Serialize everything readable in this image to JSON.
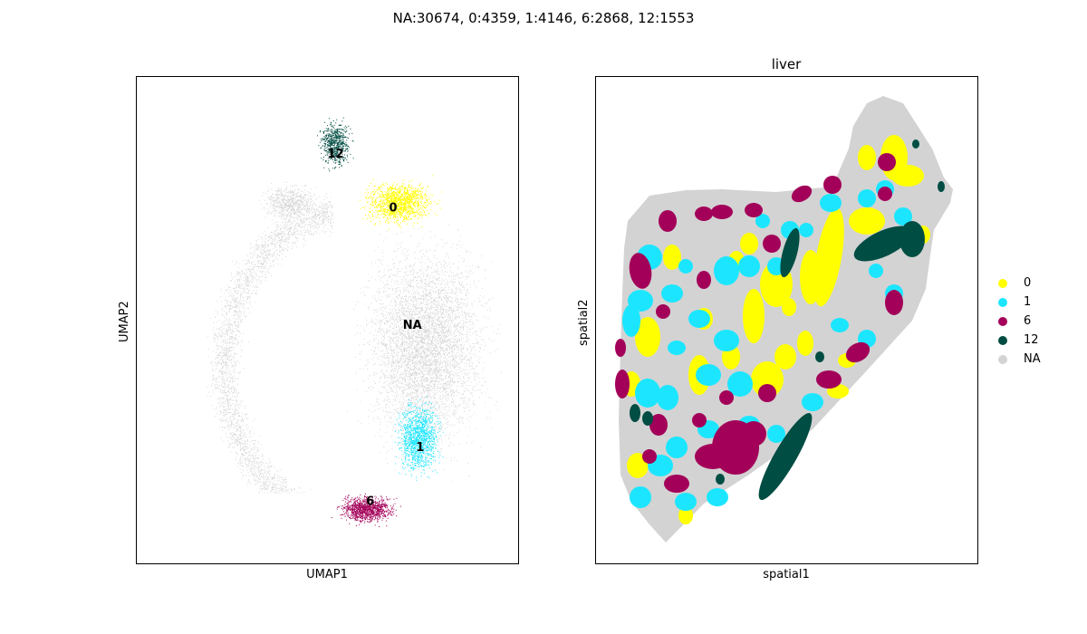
{
  "suptitle": "NA:30674, 0:4359, 1:4146, 6:2868, 12:1553",
  "colors": {
    "0": "#ffff00",
    "1": "#1ce6ff",
    "6": "#a30059",
    "12": "#004d43",
    "NA": "#d3d3d3"
  },
  "legend": {
    "placement": "right",
    "items": [
      {
        "label": "0",
        "color": "#ffff00"
      },
      {
        "label": "1",
        "color": "#1ce6ff"
      },
      {
        "label": "6",
        "color": "#a30059"
      },
      {
        "label": "12",
        "color": "#004d43"
      },
      {
        "label": "NA",
        "color": "#d3d3d3"
      }
    ]
  },
  "chart_data": [
    {
      "type": "scatter",
      "title": "",
      "xlabel": "UMAP1",
      "ylabel": "UMAP2",
      "xticks": [],
      "yticks": [],
      "grid": false,
      "cluster_labels": [
        {
          "label": "12",
          "x": 0.52,
          "y": 0.84
        },
        {
          "label": "0",
          "x": 0.67,
          "y": 0.73
        },
        {
          "label": "NA",
          "x": 0.72,
          "y": 0.49
        },
        {
          "label": "1",
          "x": 0.74,
          "y": 0.24
        },
        {
          "label": "6",
          "x": 0.61,
          "y": 0.13
        }
      ],
      "groups": [
        {
          "name": "NA",
          "count": 30674
        },
        {
          "name": "0",
          "count": 4359
        },
        {
          "name": "1",
          "count": 4146
        },
        {
          "name": "6",
          "count": 2868
        },
        {
          "name": "12",
          "count": 1553
        }
      ]
    },
    {
      "type": "scatter",
      "title": "liver",
      "xlabel": "spatial1",
      "ylabel": "spatial2",
      "xticks": [],
      "yticks": [],
      "grid": false,
      "groups": [
        {
          "name": "NA",
          "count": 30674
        },
        {
          "name": "0",
          "count": 4359
        },
        {
          "name": "1",
          "count": 4146
        },
        {
          "name": "6",
          "count": 2868
        },
        {
          "name": "12",
          "count": 1553
        }
      ]
    }
  ]
}
